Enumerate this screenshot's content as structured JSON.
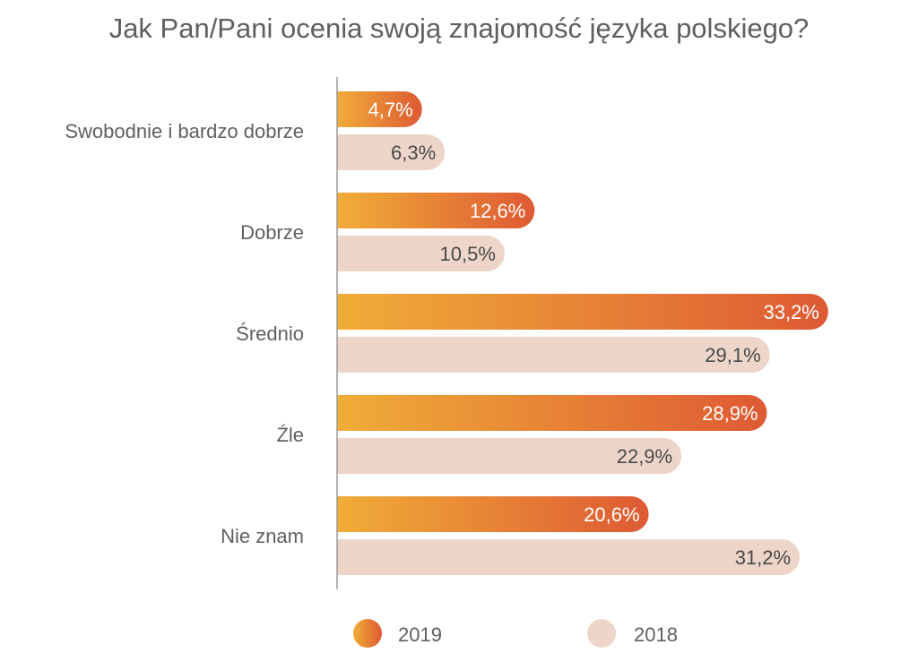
{
  "chart_data": {
    "type": "bar",
    "orientation": "horizontal",
    "title": "Jak Pan/Pani ocenia swoją znajomość języka polskiego?",
    "categories": [
      "Swobodnie i bardzo dobrze",
      "Dobrze",
      "Średnio",
      "Źle",
      "Nie znam"
    ],
    "series": [
      {
        "name": "2019",
        "values": [
          4.7,
          12.6,
          33.2,
          28.9,
          20.6
        ],
        "labels": [
          "4,7%",
          "12,6%",
          "33,2%",
          "28,9%",
          "20,6%"
        ],
        "gradient": [
          "#f0ad38",
          "#de5a34"
        ]
      },
      {
        "name": "2018",
        "values": [
          6.3,
          10.5,
          29.1,
          22.9,
          31.2
        ],
        "labels": [
          "6,3%",
          "10,5%",
          "29,1%",
          "22,9%",
          "31,2%"
        ],
        "color": "#edd5c9"
      }
    ],
    "xlim": [
      0,
      35
    ],
    "grid": false,
    "legend_position": "bottom",
    "colors": {
      "axis": "#9a9a9a",
      "label_2019": "#ffffff",
      "label_2018": "#4a4a4a"
    }
  }
}
